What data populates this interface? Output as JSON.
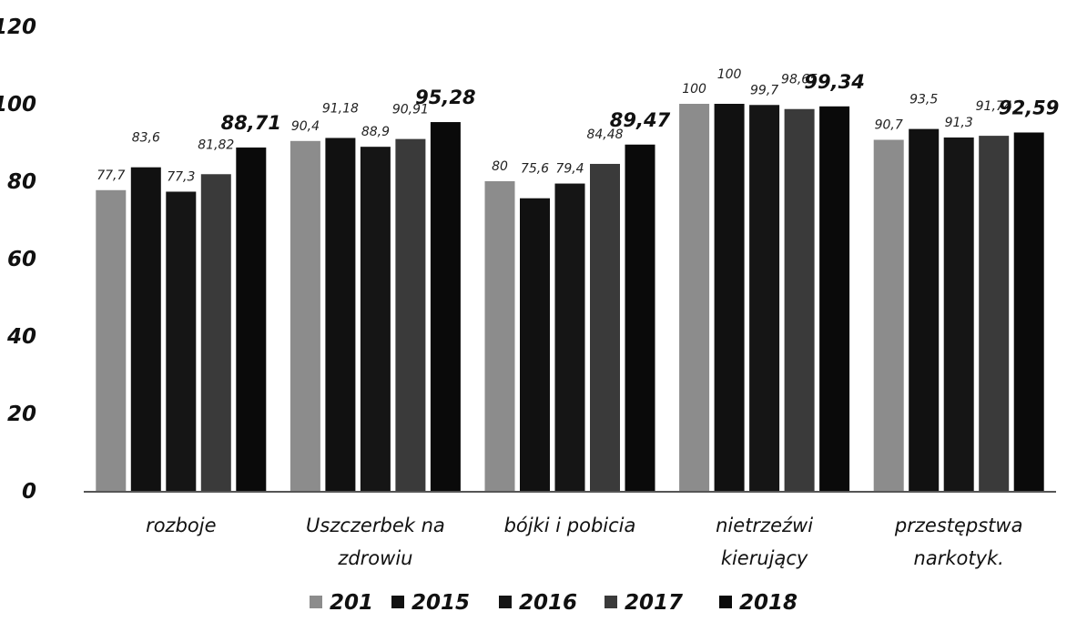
{
  "chart_data": {
    "type": "bar",
    "title": "",
    "xlabel": "",
    "ylabel": "",
    "ylim": [
      0,
      120
    ],
    "yticks": [
      0,
      20,
      40,
      60,
      80,
      100,
      120
    ],
    "ytick_labels": [
      "0",
      "20",
      "40",
      "60",
      "80",
      "100",
      "120"
    ],
    "grid": false,
    "legend_position": "bottom",
    "categories": [
      [
        "rozboje"
      ],
      [
        "Uszczerbek na",
        "zdrowiu"
      ],
      [
        "bójki i pobicia"
      ],
      [
        "nietrzeźwi",
        "kierujący"
      ],
      [
        "przestępstwa",
        "narkotyk."
      ]
    ],
    "series": [
      {
        "name": "201",
        "color": "#8c8c8c",
        "values": [
          77.7,
          90.4,
          80,
          100,
          90.7
        ],
        "labels": [
          "77,7",
          "90,4",
          "80",
          "100",
          "90,7"
        ]
      },
      {
        "name": "2015",
        "color": "#111111",
        "values": [
          83.6,
          91.18,
          75.6,
          100,
          93.5
        ],
        "labels": [
          "83,6",
          "91,18",
          "75,6",
          "100",
          "93,5"
        ]
      },
      {
        "name": "2016",
        "color": "#151515",
        "values": [
          77.3,
          88.9,
          79.4,
          99.7,
          91.3
        ],
        "labels": [
          "77,3",
          "88,9",
          "79,4",
          "99,7",
          "91,3"
        ]
      },
      {
        "name": "2017",
        "color": "#3a3a3a",
        "values": [
          81.82,
          90.91,
          84.48,
          98.65,
          91.74
        ],
        "labels": [
          "81,82",
          "90,91",
          "84,48",
          "98,65",
          "91,74"
        ]
      },
      {
        "name": "2018",
        "color": "#0a0a0a",
        "values": [
          88.71,
          95.28,
          89.47,
          99.34,
          92.59
        ],
        "labels": [
          "88,71",
          "95,28",
          "89,47",
          "99,34",
          "92,59"
        ]
      }
    ]
  }
}
